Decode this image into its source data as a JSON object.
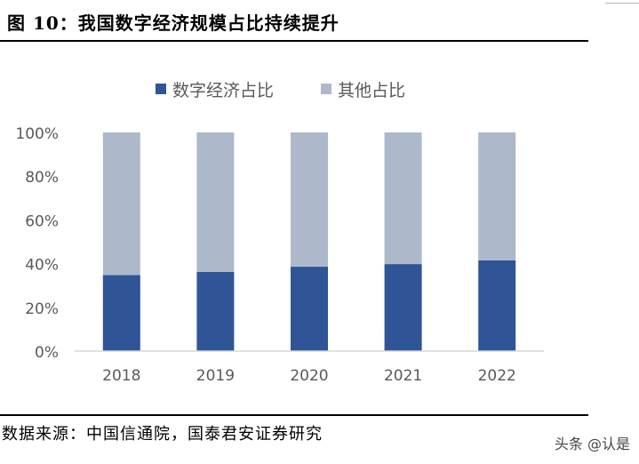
{
  "figure": {
    "title": "图 10：我国数字经济规模占比持续提升",
    "source": "数据来源：中国信通院，国泰君安证券研究",
    "watermark": "头条 @认是"
  },
  "colors": {
    "digital": "#2f5597",
    "other": "#adb9ca",
    "axis": "#d9d9d9",
    "tick_text": "#595959"
  },
  "chart_data": {
    "type": "bar",
    "stacked": true,
    "title": "",
    "xlabel": "",
    "ylabel": "",
    "categories": [
      "2018",
      "2019",
      "2020",
      "2021",
      "2022"
    ],
    "series": [
      {
        "name": "数字经济占比",
        "values": [
          34.8,
          36.2,
          38.6,
          39.8,
          41.5
        ]
      },
      {
        "name": "其他占比",
        "values": [
          65.2,
          63.8,
          61.4,
          60.2,
          58.5
        ]
      }
    ],
    "ylim": [
      0,
      100
    ],
    "yticks": [
      "0%",
      "20%",
      "40%",
      "60%",
      "80%",
      "100%"
    ],
    "ytick_values": [
      0,
      20,
      40,
      60,
      80,
      100
    ],
    "grid": false,
    "legend": "top-center"
  }
}
